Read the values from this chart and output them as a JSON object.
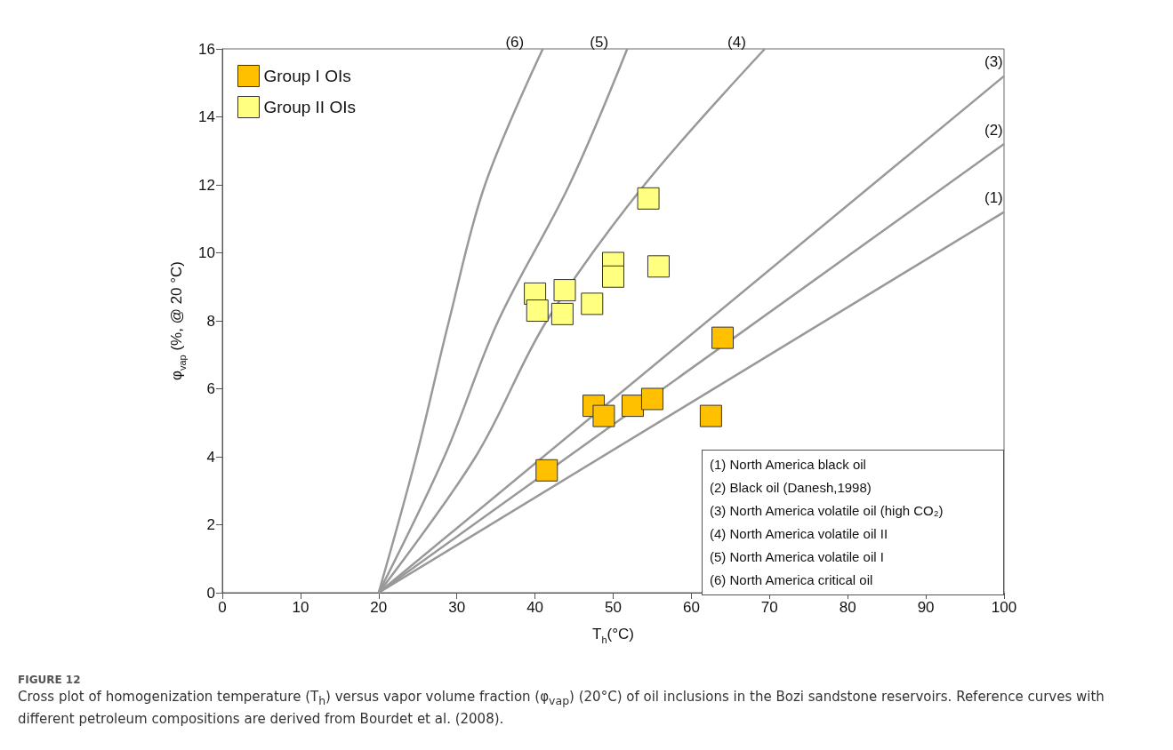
{
  "chart_data": {
    "type": "scatter",
    "title": "FIGURE 12",
    "subtitle": "Cross plot of homogenization temperature (T$_{h}$) versus vapor volume fraction (φ$_{vap}$) (20°C) of oil inclusions in the Bozi sandstone reservoirs. Reference curves with different petroleum compositions are derived from Bourdet et al. (2008).",
    "xlabel": "T$_{h}$(°C)",
    "ylabel": "φ$_{vap}$ (%, @ 20 °C)",
    "xlim": [
      0,
      100
    ],
    "ylim": [
      0,
      16
    ],
    "xticks": [
      0,
      10,
      20,
      30,
      40,
      50,
      60,
      70,
      80,
      90,
      100
    ],
    "yticks": [
      0,
      2,
      4,
      6,
      8,
      10,
      12,
      14,
      16
    ],
    "grid": false,
    "legend": "top left",
    "marker": "square",
    "annotations": [
      "(1)  North America black oil",
      "(2)  Black oil (Danesh,1998)",
      "(3)  North America volatile oil (high CO₂)",
      "(4)  North America volatile oil II",
      "(5)  North America volatile oil I",
      "(6)  North America critical oil"
    ],
    "series": [
      {
        "name": "(1)",
        "type": "line",
        "marker": "none",
        "color": "#999999",
        "x": [
          20,
          100
        ],
        "values": [
          0,
          11.2
        ]
      },
      {
        "name": "(2)",
        "type": "line",
        "marker": "none",
        "color": "#999999",
        "x": [
          20,
          100
        ],
        "values": [
          0,
          13.2
        ]
      },
      {
        "name": "(3)",
        "type": "line",
        "marker": "none",
        "color": "#999999",
        "x": [
          20,
          100
        ],
        "values": [
          0,
          15.2
        ]
      },
      {
        "name": "(4)",
        "type": "line",
        "marker": "none",
        "color": "#999999",
        "x": [
          20,
          32.4,
          41.5,
          54,
          69.4
        ],
        "values": [
          0,
          4,
          8,
          12,
          16
        ]
      },
      {
        "name": "(5)",
        "type": "line",
        "marker": "none",
        "color": "#999999",
        "x": [
          20,
          28.4,
          35.3,
          44.4,
          51.8
        ],
        "values": [
          0,
          4,
          8,
          12,
          16
        ]
      },
      {
        "name": "(6)",
        "type": "line",
        "marker": "none",
        "color": "#999999",
        "x": [
          20,
          24.8,
          29,
          33.6,
          41
        ],
        "values": [
          0,
          4,
          8,
          12,
          16
        ]
      },
      {
        "name": "Group I OIs",
        "color": "#ffc000",
        "x": [
          41.5,
          47.5,
          48.8,
          52.5,
          55,
          62.5,
          64
        ],
        "values": [
          3.6,
          5.5,
          5.2,
          5.5,
          5.7,
          5.2,
          7.5
        ]
      },
      {
        "name": "Group II OIs",
        "color": "#ffff80",
        "x": [
          40,
          40.3,
          43.8,
          43.5,
          47.3,
          50,
          50,
          55.8,
          54.5
        ],
        "values": [
          8.8,
          8.3,
          8.9,
          8.2,
          8.5,
          9.7,
          9.3,
          9.6,
          11.6
        ]
      }
    ]
  }
}
